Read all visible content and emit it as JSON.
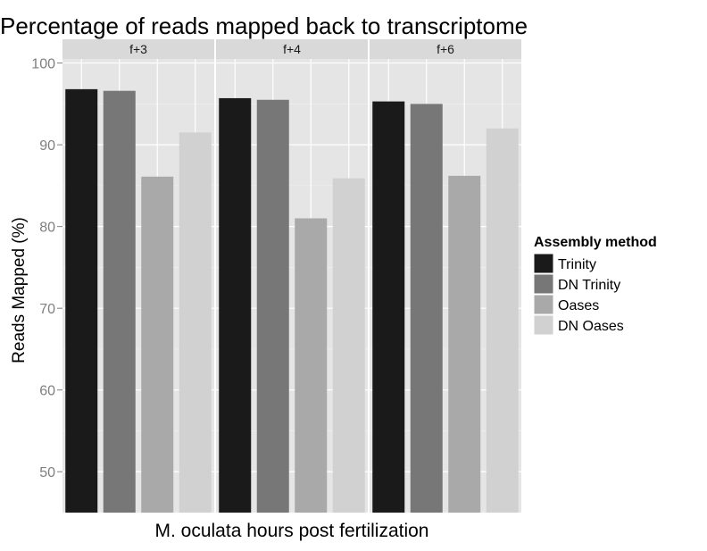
{
  "chart_data": {
    "type": "bar",
    "title": "Percentage of reads mapped back to transcriptome",
    "xlabel": "M. oculata hours post fertilization",
    "ylabel": "Reads Mapped (%)",
    "y_ticks": [
      "100",
      "90",
      "80",
      "70",
      "60",
      "50"
    ],
    "ylim": [
      45,
      100.5
    ],
    "grid": true,
    "legend_position": "right",
    "legend_title": "Assembly method",
    "series": [
      {
        "name": "Trinity",
        "color": "#1a1a1a"
      },
      {
        "name": "DN Trinity",
        "color": "#777777"
      },
      {
        "name": "Oases",
        "color": "#a9a9a9"
      },
      {
        "name": "DN Oases",
        "color": "#d1d1d1"
      }
    ],
    "panels": [
      {
        "label": "f+3",
        "values": [
          96.8,
          96.6,
          86.1,
          91.5
        ]
      },
      {
        "label": "f+4",
        "values": [
          95.7,
          95.5,
          81.0,
          85.9
        ]
      },
      {
        "label": "f+6",
        "values": [
          95.3,
          95.0,
          86.2,
          92.0
        ]
      }
    ]
  }
}
